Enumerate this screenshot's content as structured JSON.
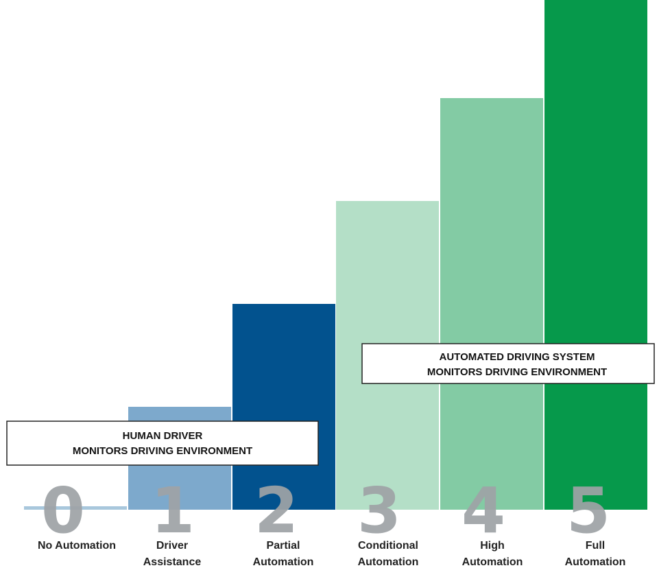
{
  "chart_data": {
    "type": "bar",
    "categories": [
      [
        "No Automation"
      ],
      [
        "Driver",
        "Assistance"
      ],
      [
        "Partial",
        "Automation"
      ],
      [
        "Conditional",
        "Automation"
      ],
      [
        "High",
        "Automation"
      ],
      [
        "Full",
        "Automation"
      ]
    ],
    "level_labels": [
      "0",
      "1",
      "2",
      "3",
      "4",
      "5"
    ],
    "values": [
      0,
      1,
      2,
      3,
      4,
      5
    ],
    "ylim": [
      0,
      5
    ],
    "bar_colors": [
      "#a8c7dc",
      "#7da9cc",
      "#02528e",
      "#b4dfc7",
      "#83cba4",
      "#06994b"
    ],
    "grid": false,
    "legend": "none",
    "callouts": [
      {
        "lines": [
          "HUMAN DRIVER",
          "MONITORS DRIVING ENVIRONMENT"
        ],
        "spans_levels": [
          0,
          2
        ]
      },
      {
        "lines": [
          "AUTOMATED DRIVING SYSTEM",
          "MONITORS DRIVING ENVIRONMENT"
        ],
        "spans_levels": [
          3,
          5
        ]
      }
    ]
  }
}
